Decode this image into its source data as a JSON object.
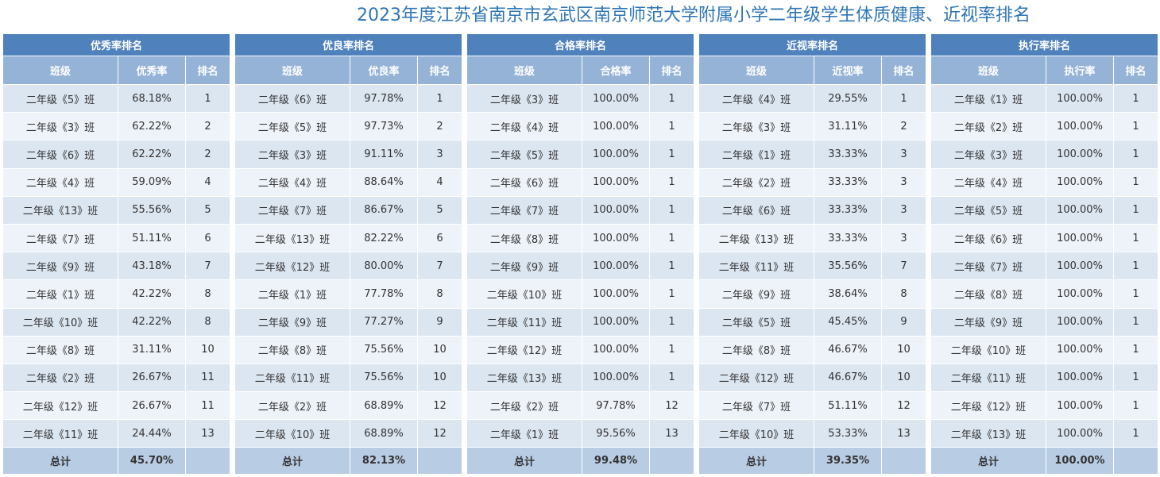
{
  "title": "2023年度江苏省南京市玄武区南京师范大学附属小学二年级学生体质健康、近视率排名",
  "colors": {
    "title": "#2e75b6",
    "group_header": "#4f81bd",
    "col_header": "#95b3d7",
    "row_a": "#dce6f1",
    "row_b": "#eef3f9",
    "total": "#b8cce4"
  },
  "panels": [
    {
      "group_label": "优秀率排名",
      "headers": [
        "班级",
        "优秀率",
        "排名"
      ],
      "rows": [
        [
          "二年级《5》班",
          "68.18%",
          "1"
        ],
        [
          "二年级《3》班",
          "62.22%",
          "2"
        ],
        [
          "二年级《6》班",
          "62.22%",
          "2"
        ],
        [
          "二年级《4》班",
          "59.09%",
          "4"
        ],
        [
          "二年级《13》班",
          "55.56%",
          "5"
        ],
        [
          "二年级《7》班",
          "51.11%",
          "6"
        ],
        [
          "二年级《9》班",
          "43.18%",
          "7"
        ],
        [
          "二年级《1》班",
          "42.22%",
          "8"
        ],
        [
          "二年级《10》班",
          "42.22%",
          "8"
        ],
        [
          "二年级《8》班",
          "31.11%",
          "10"
        ],
        [
          "二年级《2》班",
          "26.67%",
          "11"
        ],
        [
          "二年级《12》班",
          "26.67%",
          "11"
        ],
        [
          "二年级《11》班",
          "24.44%",
          "13"
        ]
      ],
      "total": [
        "总计",
        "45.70%",
        ""
      ]
    },
    {
      "group_label": "优良率排名",
      "headers": [
        "班级",
        "优良率",
        "排名"
      ],
      "rows": [
        [
          "二年级《6》班",
          "97.78%",
          "1"
        ],
        [
          "二年级《5》班",
          "97.73%",
          "2"
        ],
        [
          "二年级《3》班",
          "91.11%",
          "3"
        ],
        [
          "二年级《4》班",
          "88.64%",
          "4"
        ],
        [
          "二年级《7》班",
          "86.67%",
          "5"
        ],
        [
          "二年级《13》班",
          "82.22%",
          "6"
        ],
        [
          "二年级《12》班",
          "80.00%",
          "7"
        ],
        [
          "二年级《1》班",
          "77.78%",
          "8"
        ],
        [
          "二年级《9》班",
          "77.27%",
          "9"
        ],
        [
          "二年级《8》班",
          "75.56%",
          "10"
        ],
        [
          "二年级《11》班",
          "75.56%",
          "10"
        ],
        [
          "二年级《2》班",
          "68.89%",
          "12"
        ],
        [
          "二年级《10》班",
          "68.89%",
          "12"
        ]
      ],
      "total": [
        "总计",
        "82.13%",
        ""
      ]
    },
    {
      "group_label": "合格率排名",
      "headers": [
        "班级",
        "合格率",
        "排名"
      ],
      "rows": [
        [
          "二年级《3》班",
          "100.00%",
          "1"
        ],
        [
          "二年级《4》班",
          "100.00%",
          "1"
        ],
        [
          "二年级《5》班",
          "100.00%",
          "1"
        ],
        [
          "二年级《6》班",
          "100.00%",
          "1"
        ],
        [
          "二年级《7》班",
          "100.00%",
          "1"
        ],
        [
          "二年级《8》班",
          "100.00%",
          "1"
        ],
        [
          "二年级《9》班",
          "100.00%",
          "1"
        ],
        [
          "二年级《10》班",
          "100.00%",
          "1"
        ],
        [
          "二年级《11》班",
          "100.00%",
          "1"
        ],
        [
          "二年级《12》班",
          "100.00%",
          "1"
        ],
        [
          "二年级《13》班",
          "100.00%",
          "1"
        ],
        [
          "二年级《2》班",
          "97.78%",
          "12"
        ],
        [
          "二年级《1》班",
          "95.56%",
          "13"
        ]
      ],
      "total": [
        "总计",
        "99.48%",
        ""
      ]
    },
    {
      "group_label": "近视率排名",
      "headers": [
        "班级",
        "近视率",
        "排名"
      ],
      "rows": [
        [
          "二年级《4》班",
          "29.55%",
          "1"
        ],
        [
          "二年级《3》班",
          "31.11%",
          "2"
        ],
        [
          "二年级《1》班",
          "33.33%",
          "3"
        ],
        [
          "二年级《2》班",
          "33.33%",
          "3"
        ],
        [
          "二年级《6》班",
          "33.33%",
          "3"
        ],
        [
          "二年级《13》班",
          "33.33%",
          "3"
        ],
        [
          "二年级《11》班",
          "35.56%",
          "7"
        ],
        [
          "二年级《9》班",
          "38.64%",
          "8"
        ],
        [
          "二年级《5》班",
          "45.45%",
          "9"
        ],
        [
          "二年级《8》班",
          "46.67%",
          "10"
        ],
        [
          "二年级《12》班",
          "46.67%",
          "10"
        ],
        [
          "二年级《7》班",
          "51.11%",
          "12"
        ],
        [
          "二年级《10》班",
          "53.33%",
          "13"
        ]
      ],
      "total": [
        "总计",
        "39.35%",
        ""
      ]
    },
    {
      "group_label": "执行率排名",
      "headers": [
        "班级",
        "执行率",
        "排名"
      ],
      "rows": [
        [
          "二年级《1》班",
          "100.00%",
          "1"
        ],
        [
          "二年级《2》班",
          "100.00%",
          "1"
        ],
        [
          "二年级《3》班",
          "100.00%",
          "1"
        ],
        [
          "二年级《4》班",
          "100.00%",
          "1"
        ],
        [
          "二年级《5》班",
          "100.00%",
          "1"
        ],
        [
          "二年级《6》班",
          "100.00%",
          "1"
        ],
        [
          "二年级《7》班",
          "100.00%",
          "1"
        ],
        [
          "二年级《8》班",
          "100.00%",
          "1"
        ],
        [
          "二年级《9》班",
          "100.00%",
          "1"
        ],
        [
          "二年级《10》班",
          "100.00%",
          "1"
        ],
        [
          "二年级《11》班",
          "100.00%",
          "1"
        ],
        [
          "二年级《12》班",
          "100.00%",
          "1"
        ],
        [
          "二年级《13》班",
          "100.00%",
          "1"
        ]
      ],
      "total": [
        "总计",
        "100.00%",
        ""
      ]
    }
  ]
}
